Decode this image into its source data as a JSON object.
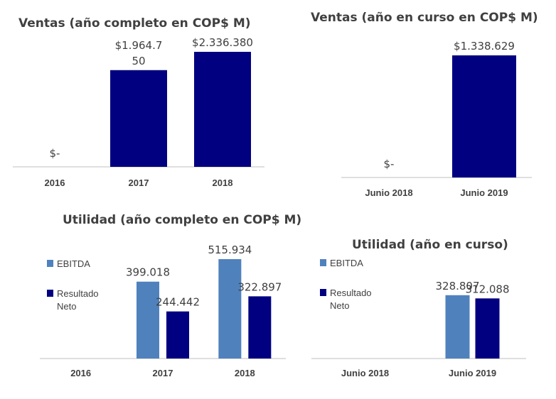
{
  "colors": {
    "navy": "#000080",
    "steel": "#4F81BD",
    "axis": "#BFBFBF"
  },
  "chart_data": [
    {
      "type": "bar",
      "title": "Ventas (año completo en COP$ M)",
      "categories": [
        "2016",
        "2017",
        "2018"
      ],
      "series": [
        {
          "values": [
            0,
            1964750,
            2336380
          ],
          "labels": [
            "$-",
            "$1.964.7\n50",
            "$2.336.380"
          ]
        }
      ],
      "ylim": [
        0,
        2336380
      ],
      "grid": false
    },
    {
      "type": "bar",
      "title": "Ventas (año en curso en COP$ M)",
      "categories": [
        "Junio 2018",
        "Junio 2019"
      ],
      "series": [
        {
          "values": [
            0,
            1338629
          ],
          "labels": [
            "$-",
            "$1.338.629"
          ]
        }
      ],
      "ylim": [
        0,
        1338629
      ],
      "grid": false
    },
    {
      "type": "bar",
      "title": "Utilidad (año completo en COP$ M)",
      "categories": [
        "2016",
        "2017",
        "2018"
      ],
      "series": [
        {
          "name": "EBITDA",
          "values": [
            null,
            399.018,
            515.934
          ],
          "labels": [
            "",
            "399.018",
            "515.934"
          ]
        },
        {
          "name": "Resultado Neto",
          "values": [
            null,
            244.442,
            322.897
          ],
          "labels": [
            "",
            "244.442",
            "322.897"
          ]
        }
      ],
      "legend": "left",
      "ylim": [
        0,
        515.934
      ],
      "grid": false
    },
    {
      "type": "bar",
      "title": "Utilidad (año en curso)",
      "categories": [
        "Junio 2018",
        "Junio 2019"
      ],
      "series": [
        {
          "name": "EBITDA",
          "values": [
            null,
            328.807
          ],
          "labels": [
            "",
            "328.807"
          ]
        },
        {
          "name": "Resultado Neto",
          "values": [
            null,
            312.088
          ],
          "labels": [
            "",
            "312.088"
          ]
        }
      ],
      "legend": "left",
      "ylim": [
        0,
        515.934
      ],
      "grid": false
    }
  ]
}
